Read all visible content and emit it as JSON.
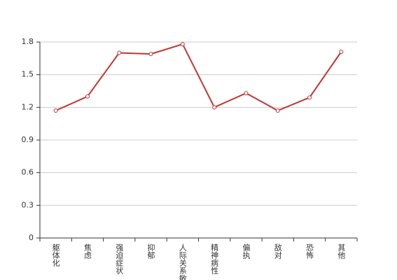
{
  "chart_data": {
    "type": "line",
    "categories": [
      "躯体化",
      "焦虑",
      "强迫症状",
      "抑郁",
      "人际关系敏感",
      "精神病性",
      "偏执",
      "敌对",
      "恐怖",
      "其他"
    ],
    "values": [
      1.17,
      1.3,
      1.7,
      1.69,
      1.78,
      1.2,
      1.33,
      1.17,
      1.29,
      1.71
    ],
    "color": "#c23531",
    "ylim": [
      0,
      1.8
    ],
    "yticks": [
      0,
      0.3,
      0.6,
      0.9,
      1.2,
      1.5,
      1.8
    ],
    "grid": true
  }
}
